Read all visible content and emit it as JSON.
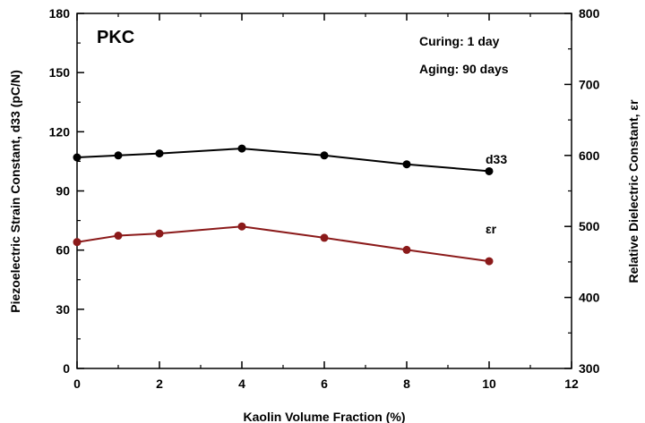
{
  "chart_data": {
    "type": "line",
    "panel_label": "PKC",
    "annotations": [
      "Curing: 1 day",
      "Aging: 90 days"
    ],
    "xlabel": "Kaolin Volume Fraction (%)",
    "ylabel_left": "Piezoelectric Strain Constant, d33 (pC/N)",
    "ylabel_right": "Relative Dielectric Constant, εr",
    "xlim": [
      0,
      12
    ],
    "ylim_left": [
      0,
      180
    ],
    "ylim_right": [
      300,
      800
    ],
    "x_ticks": [
      "0",
      "2",
      "4",
      "6",
      "8",
      "10",
      "12"
    ],
    "y_ticks_left": [
      "0",
      "30",
      "60",
      "90",
      "120",
      "150",
      "180"
    ],
    "y_ticks_right": [
      "300",
      "400",
      "500",
      "600",
      "700",
      "800"
    ],
    "series": [
      {
        "name": "d33",
        "axis": "left",
        "color": "#000000",
        "x": [
          0,
          1,
          2,
          4,
          6,
          8,
          10
        ],
        "y": [
          107,
          108,
          109,
          111.5,
          108,
          103.5,
          100
        ]
      },
      {
        "name": "εr",
        "axis": "right",
        "color": "#8b1a1a",
        "x": [
          0,
          1,
          2,
          4,
          6,
          8,
          10
        ],
        "y": [
          478,
          487,
          490,
          500,
          484,
          467,
          451
        ]
      }
    ],
    "grid": false
  }
}
